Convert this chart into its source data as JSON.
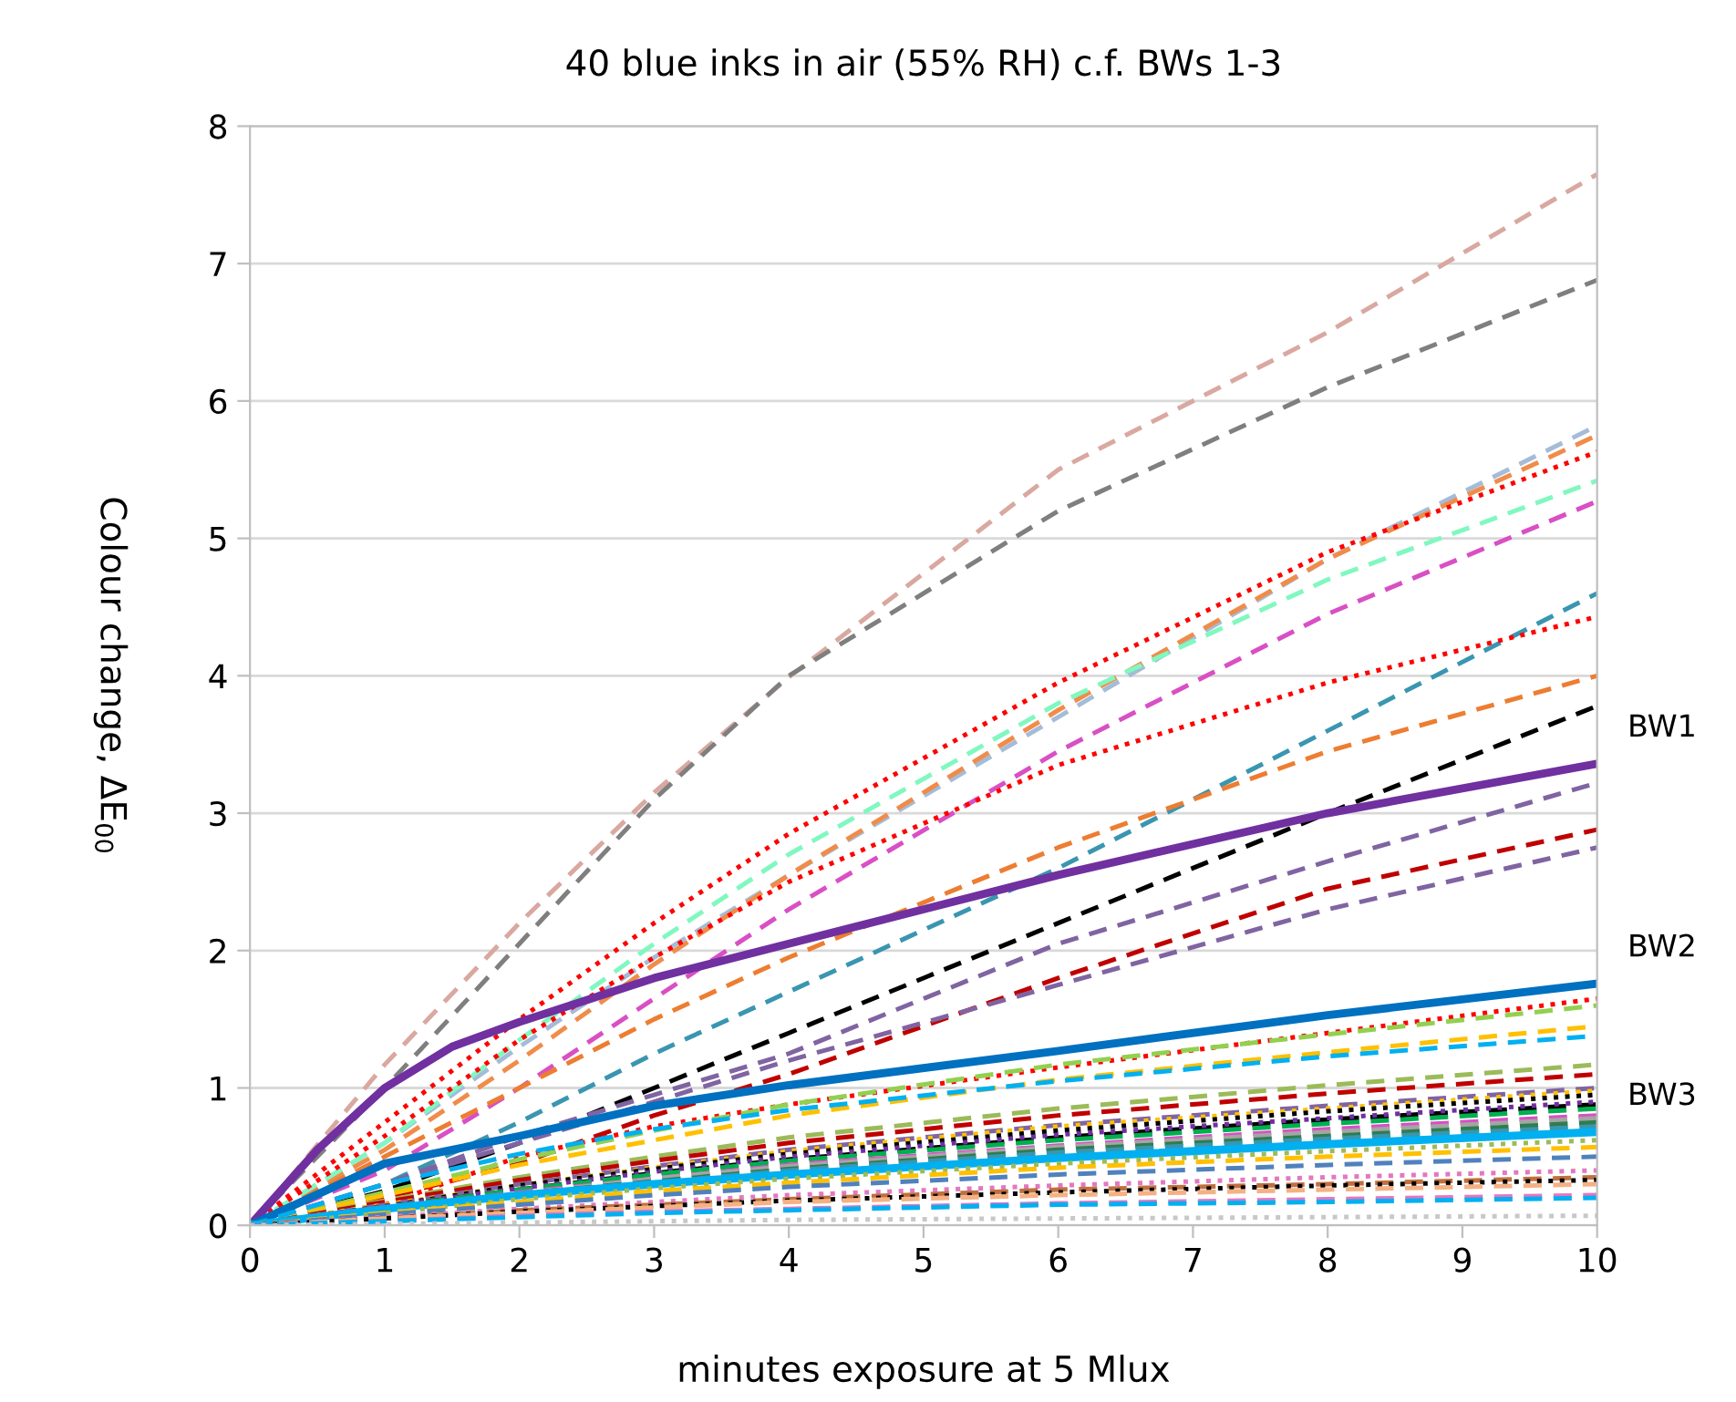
{
  "chart_data": {
    "type": "line",
    "title": "40 blue inks in air (55% RH) c.f. BWs 1-3",
    "xlabel": "minutes exposure at 5 Mlux",
    "ylabel": "Colour change, ΔE$_{00}$",
    "x": [
      0,
      1,
      2,
      3,
      4,
      6,
      8,
      10
    ],
    "xlim": [
      0,
      10
    ],
    "xticks": [
      0,
      1,
      2,
      3,
      4,
      5,
      6,
      7,
      8,
      9,
      10
    ],
    "ylim": [
      0,
      8
    ],
    "yticks": [
      0,
      1,
      2,
      3,
      4,
      5,
      6,
      7,
      8
    ],
    "grid": "y",
    "legend": false,
    "marker": "none",
    "series": [
      {
        "color": "#d9a8a0",
        "line_style": "dashed",
        "values": [
          0,
          1.17,
          2.2,
          3.15,
          3.99,
          5.5,
          6.5,
          7.65
        ]
      },
      {
        "color": "#7f7f7f",
        "line_style": "dashed",
        "values": [
          0,
          1.0,
          2.05,
          3.1,
          4.0,
          5.2,
          6.1,
          6.88
        ]
      },
      {
        "color": "#a5bcd8",
        "line_style": "dashed",
        "values": [
          0,
          0.6,
          1.3,
          1.95,
          2.55,
          3.7,
          4.85,
          5.82
        ]
      },
      {
        "color": "#f08c4a",
        "line_style": "dashed",
        "values": [
          0,
          0.55,
          1.2,
          1.9,
          2.55,
          3.75,
          4.85,
          5.75
        ]
      },
      {
        "color": "#ff0000",
        "line_style": "dotted",
        "values": [
          0,
          0.75,
          1.5,
          2.2,
          2.85,
          3.95,
          4.9,
          5.63
        ]
      },
      {
        "color": "#80f8c0",
        "line_style": "dashed",
        "values": [
          0,
          0.6,
          1.35,
          2.05,
          2.7,
          3.8,
          4.7,
          5.42
        ]
      },
      {
        "color": "#d94fc4",
        "line_style": "dashed",
        "values": [
          0,
          0.4,
          1.0,
          1.65,
          2.3,
          3.45,
          4.45,
          5.27
        ]
      },
      {
        "color": "#3a96b0",
        "line_style": "dashed",
        "values": [
          0,
          0.3,
          0.75,
          1.25,
          1.7,
          2.6,
          3.6,
          4.6
        ]
      },
      {
        "color": "#ff0000",
        "line_style": "dotted",
        "values": [
          0,
          0.65,
          1.35,
          1.95,
          2.5,
          3.35,
          3.95,
          4.43
        ]
      },
      {
        "color": "#ed7d31",
        "line_style": "dashed",
        "values": [
          0,
          0.5,
          1.0,
          1.5,
          1.95,
          2.75,
          3.45,
          4.0
        ]
      },
      {
        "color": "#000000",
        "line_style": "dashed",
        "values": [
          0,
          0.25,
          0.6,
          1.0,
          1.4,
          2.2,
          3.0,
          3.78
        ]
      },
      {
        "name": "BW1",
        "color": "#7030a0",
        "line_style": "solid",
        "x": [
          0,
          0.5,
          1,
          1.5,
          2,
          3,
          4,
          6,
          8,
          10
        ],
        "values": [
          0,
          0.55,
          1.0,
          1.3,
          1.48,
          1.8,
          2.05,
          2.55,
          3.0,
          3.36
        ]
      },
      {
        "color": "#8064a2",
        "line_style": "dashed",
        "values": [
          0,
          0.3,
          0.65,
          0.95,
          1.25,
          2.05,
          2.65,
          3.22
        ]
      },
      {
        "color": "#c00000",
        "line_style": "dashed",
        "values": [
          0,
          0.2,
          0.45,
          0.8,
          1.1,
          1.8,
          2.45,
          2.88
        ]
      },
      {
        "color": "#8064a2",
        "line_style": "dashed",
        "values": [
          0,
          0.3,
          0.6,
          0.9,
          1.2,
          1.75,
          2.3,
          2.75
        ]
      },
      {
        "name": "BW2",
        "color": "#0070c0",
        "line_style": "solid",
        "values": [
          0,
          0.45,
          0.65,
          0.87,
          1.02,
          1.27,
          1.53,
          1.76
        ]
      },
      {
        "color": "#ff0000",
        "line_style": "dotted",
        "values": [
          0,
          0.15,
          0.5,
          0.72,
          0.88,
          1.15,
          1.4,
          1.65
        ]
      },
      {
        "color": "#92d050",
        "line_style": "dashed",
        "values": [
          0,
          0.24,
          0.48,
          0.69,
          0.88,
          1.17,
          1.39,
          1.6
        ]
      },
      {
        "color": "#ffc000",
        "line_style": "dashed",
        "values": [
          0,
          0.22,
          0.44,
          0.62,
          0.8,
          1.06,
          1.26,
          1.45
        ]
      },
      {
        "color": "#00b0f0",
        "line_style": "dashed",
        "values": [
          0,
          0.3,
          0.52,
          0.7,
          0.84,
          1.05,
          1.23,
          1.38
        ]
      },
      {
        "color": "#9bbb59",
        "line_style": "dashed",
        "values": [
          0,
          0.18,
          0.35,
          0.5,
          0.64,
          0.85,
          1.02,
          1.17
        ]
      },
      {
        "color": "#c00000",
        "line_style": "dashed",
        "values": [
          0,
          0.17,
          0.33,
          0.47,
          0.6,
          0.8,
          0.96,
          1.1
        ]
      },
      {
        "color": "#8064a2",
        "line_style": "dashed",
        "values": [
          0,
          0.15,
          0.3,
          0.43,
          0.55,
          0.73,
          0.87,
          1.0
        ]
      },
      {
        "color": "#ffc000",
        "line_style": "dotted",
        "values": [
          0,
          0.15,
          0.29,
          0.42,
          0.54,
          0.72,
          0.85,
          0.98
        ]
      },
      {
        "color": "#000000",
        "line_style": "dotted",
        "values": [
          0,
          0.14,
          0.29,
          0.41,
          0.52,
          0.69,
          0.83,
          0.95
        ]
      },
      {
        "color": "#000000",
        "line_style": "dashed",
        "values": [
          0,
          0.13,
          0.26,
          0.38,
          0.48,
          0.64,
          0.77,
          0.88
        ]
      },
      {
        "color": "#7030a0",
        "line_style": "dotted",
        "values": [
          0,
          0.14,
          0.27,
          0.39,
          0.5,
          0.66,
          0.78,
          0.9
        ]
      },
      {
        "color": "#00b050",
        "line_style": "dashed",
        "values": [
          0,
          0.13,
          0.26,
          0.37,
          0.47,
          0.62,
          0.74,
          0.85
        ]
      },
      {
        "color": "#d94fc4",
        "line_style": "dashed",
        "values": [
          0,
          0.12,
          0.24,
          0.34,
          0.44,
          0.58,
          0.7,
          0.8
        ]
      },
      {
        "color": "#a5a5a5",
        "line_style": "dashed",
        "values": [
          0,
          0.12,
          0.23,
          0.34,
          0.43,
          0.57,
          0.68,
          0.78
        ]
      },
      {
        "color": "#2e7d4f",
        "line_style": "dashed",
        "values": [
          0,
          0.11,
          0.23,
          0.32,
          0.41,
          0.55,
          0.65,
          0.75
        ]
      },
      {
        "color": "#3a96b0",
        "line_style": "dashed",
        "values": [
          0,
          0.11,
          0.22,
          0.31,
          0.4,
          0.53,
          0.63,
          0.72
        ]
      },
      {
        "name": "BW3",
        "color": "#00b0f0",
        "line_style": "solid",
        "values": [
          0,
          0.12,
          0.22,
          0.3,
          0.37,
          0.49,
          0.59,
          0.68
        ]
      },
      {
        "color": "#9bbb59",
        "line_style": "dotted",
        "values": [
          0,
          0.09,
          0.19,
          0.27,
          0.34,
          0.45,
          0.54,
          0.62
        ]
      },
      {
        "color": "#ffc000",
        "line_style": "dashed",
        "values": [
          0,
          0.09,
          0.17,
          0.25,
          0.31,
          0.42,
          0.5,
          0.57
        ]
      },
      {
        "color": "#4f81bd",
        "line_style": "dashed",
        "values": [
          0,
          0.08,
          0.15,
          0.22,
          0.28,
          0.37,
          0.44,
          0.5
        ]
      },
      {
        "color": "#e377c2",
        "line_style": "dotted",
        "values": [
          0,
          0.06,
          0.12,
          0.17,
          0.22,
          0.29,
          0.35,
          0.4
        ]
      },
      {
        "color": "#c07040",
        "line_style": "dashed",
        "values": [
          0,
          0.05,
          0.11,
          0.15,
          0.19,
          0.26,
          0.3,
          0.35
        ]
      },
      {
        "color": "#000000",
        "line_style": "dotted",
        "values": [
          0,
          0.05,
          0.1,
          0.14,
          0.18,
          0.24,
          0.29,
          0.33
        ]
      },
      {
        "color": "#f4b183",
        "line_style": "dashed",
        "values": [
          0,
          0.05,
          0.09,
          0.13,
          0.17,
          0.22,
          0.26,
          0.3
        ]
      },
      {
        "color": "#e377c2",
        "line_style": "dashed",
        "values": [
          0,
          0.03,
          0.07,
          0.1,
          0.12,
          0.16,
          0.19,
          0.22
        ]
      },
      {
        "color": "#00b0f0",
        "line_style": "dashed",
        "values": [
          0,
          0.03,
          0.06,
          0.09,
          0.11,
          0.15,
          0.17,
          0.2
        ]
      },
      {
        "color": "#c8c8c8",
        "line_style": "dotted",
        "values": [
          0,
          0.01,
          0.02,
          0.03,
          0.04,
          0.05,
          0.06,
          0.07
        ]
      }
    ]
  }
}
